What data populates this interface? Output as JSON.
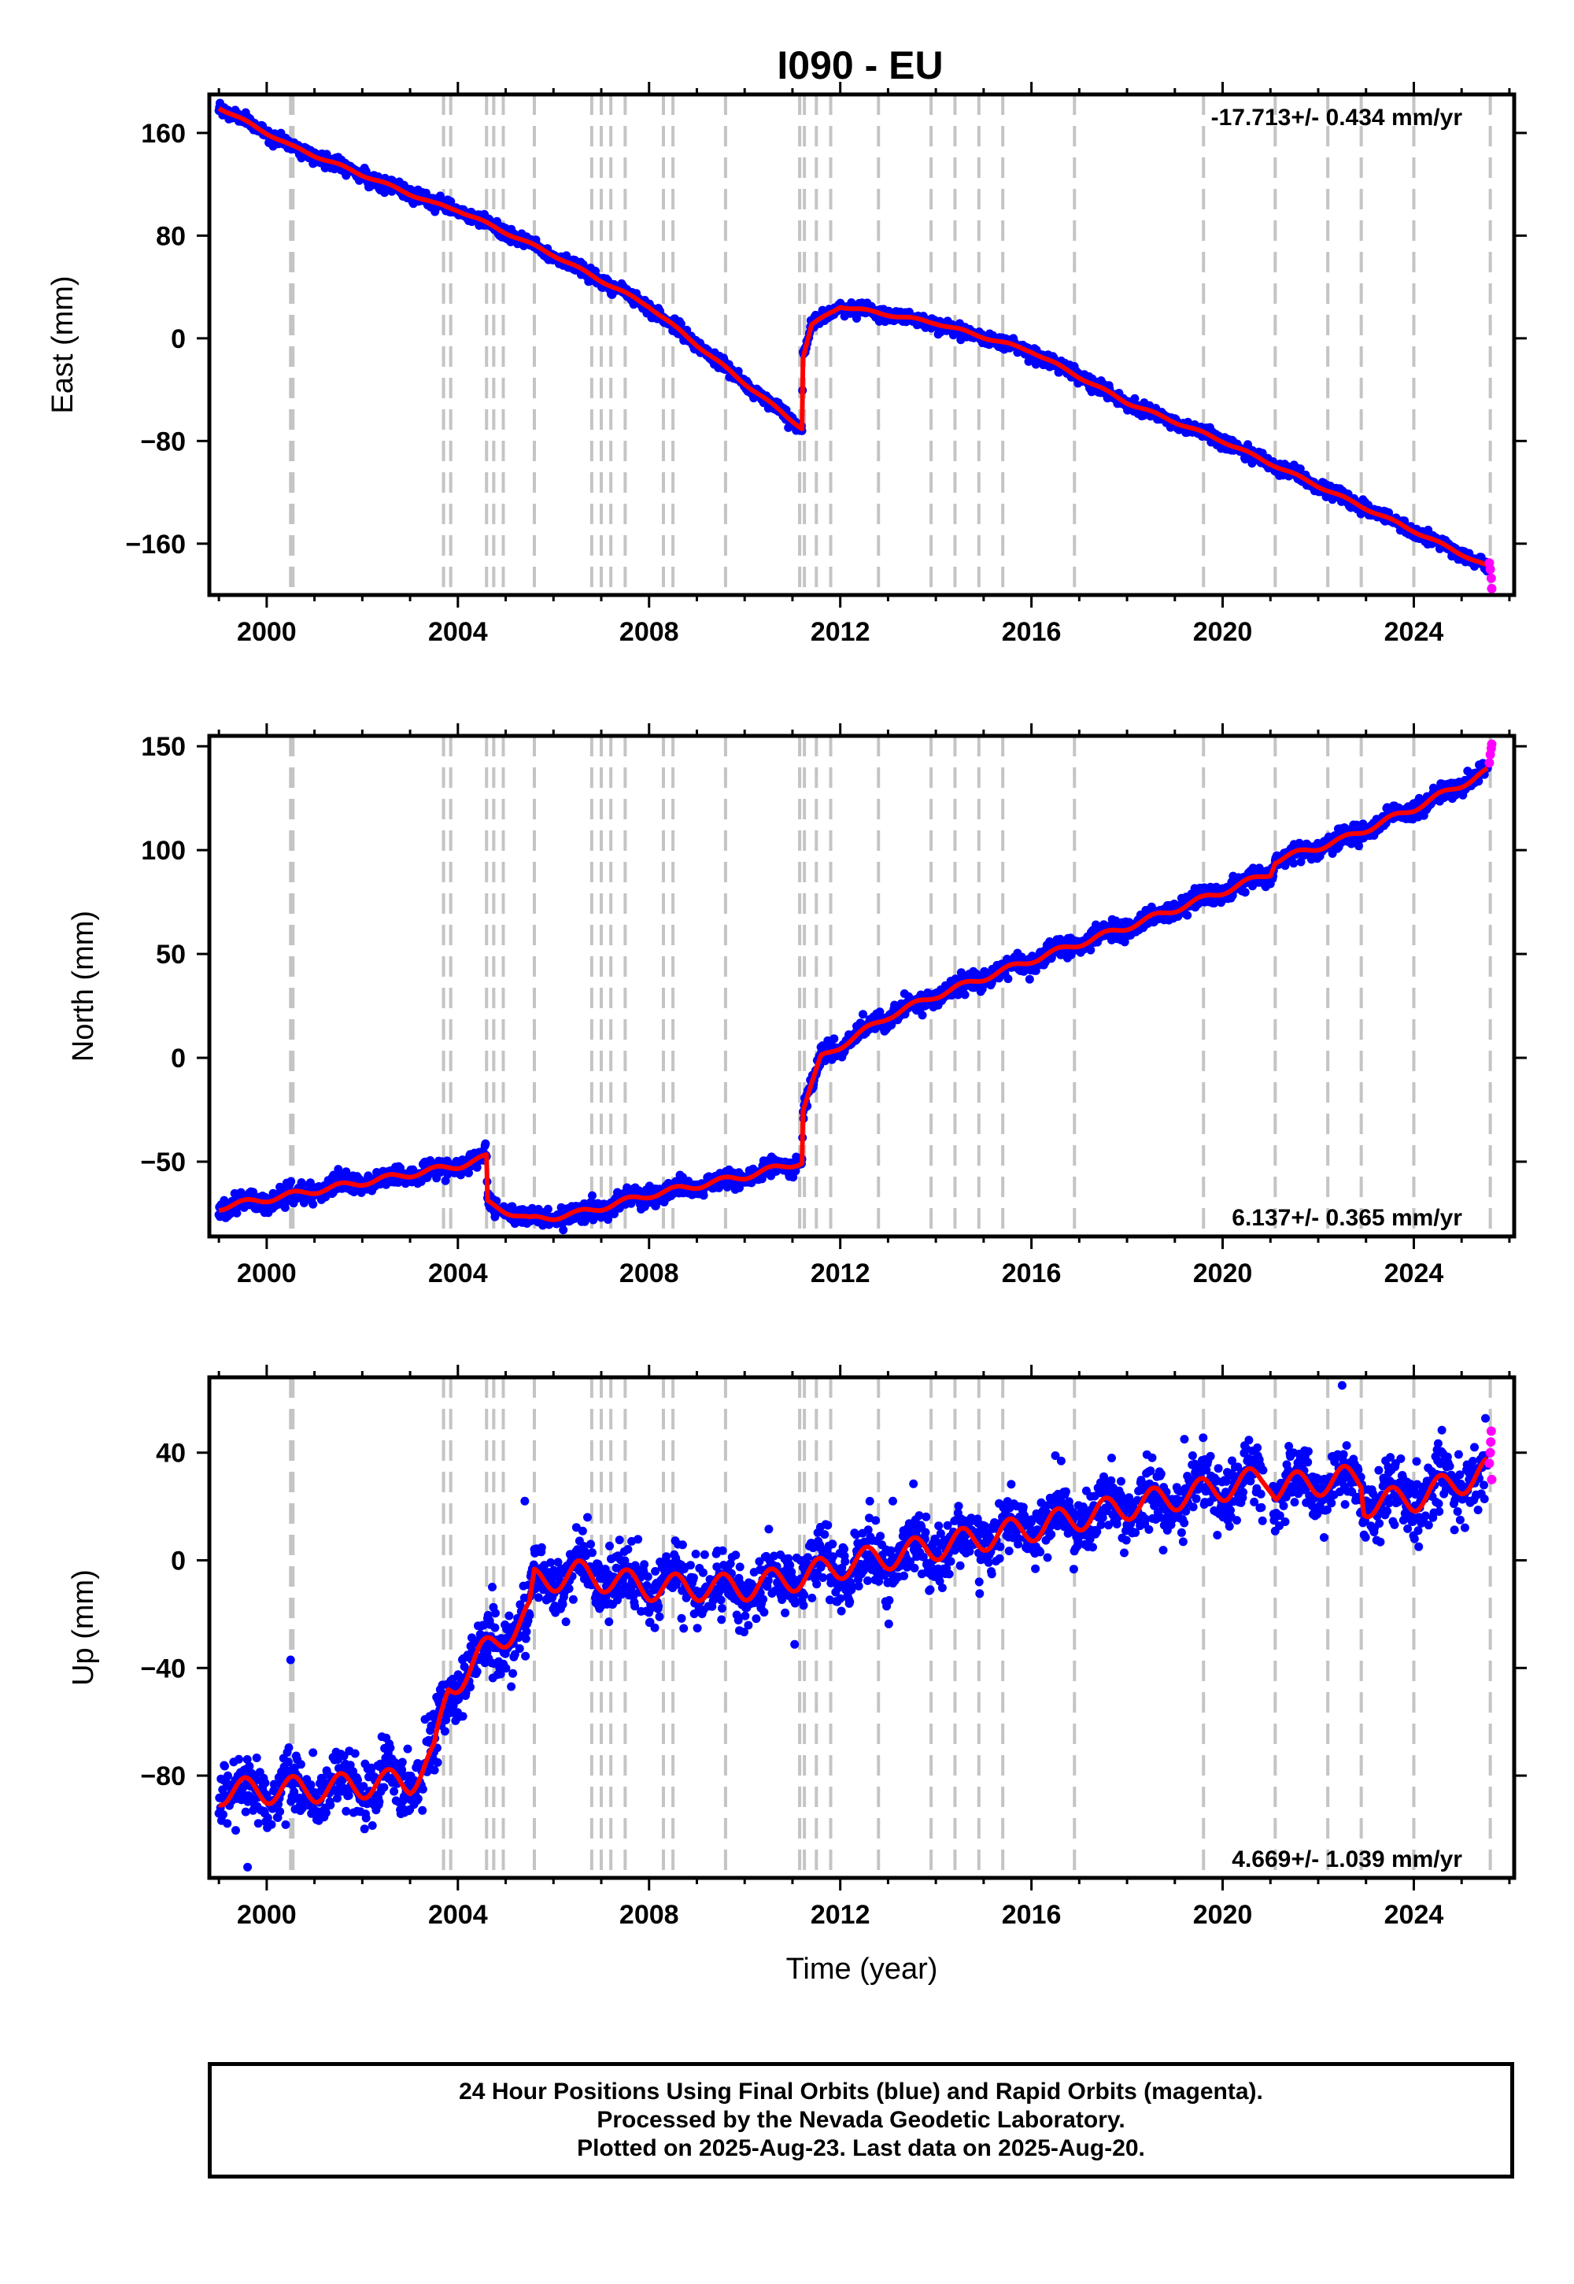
{
  "title": "I090 - EU",
  "colors": {
    "final_orbits": "#0000ff",
    "rapid_orbits": "#ff00ff",
    "model": "#ff0000",
    "events": "#c4c4c4"
  },
  "chart_data": [
    {
      "type": "scatter",
      "component": "East",
      "ylabel": "East (mm)",
      "xlabel": "",
      "rate_label": "-17.713+/- 0.434 mm/yr",
      "xlim": [
        1998.8,
        2026.1
      ],
      "ylim": [
        -200,
        190
      ],
      "xticks": [
        2000,
        2004,
        2008,
        2012,
        2016,
        2020,
        2024
      ],
      "yticks": [
        160,
        80,
        0,
        -80,
        -160
      ],
      "ytick_labels": [
        "160",
        "80",
        "0",
        "−80",
        "−160"
      ],
      "grid": false,
      "scatter_noise_mm": 2.5,
      "seasonal_amplitude_mm": 1,
      "final_orbits_trend": [
        [
          1999.0,
          180
        ],
        [
          2000.5,
          150
        ],
        [
          2003.5,
          105
        ],
        [
          2004.0,
          100
        ],
        [
          2006.0,
          65
        ],
        [
          2008.0,
          25
        ],
        [
          2010.0,
          -35
        ],
        [
          2011.2,
          -70
        ],
        [
          2011.22,
          -15
        ],
        [
          2011.4,
          10
        ],
        [
          2012.0,
          25
        ],
        [
          2014.0,
          12
        ],
        [
          2016.0,
          -10
        ],
        [
          2018.0,
          -50
        ],
        [
          2020.0,
          -80
        ],
        [
          2022.0,
          -115
        ],
        [
          2024.0,
          -150
        ],
        [
          2025.55,
          -178
        ]
      ],
      "rapid_orbits": [
        [
          2025.58,
          -175
        ],
        [
          2025.6,
          -180
        ],
        [
          2025.62,
          -187
        ],
        [
          2025.63,
          -195
        ]
      ],
      "model_breaks": [
        2011.21
      ],
      "model_gap": [],
      "outliers": [],
      "event_lines": [
        2000.5,
        2000.55,
        2003.7,
        2003.85,
        2004.6,
        2004.75,
        2004.95,
        2005.6,
        2006.8,
        2007.0,
        2007.2,
        2007.5,
        2008.3,
        2008.5,
        2009.6,
        2011.15,
        2011.25,
        2011.5,
        2011.8,
        2012.8,
        2013.9,
        2014.4,
        2014.9,
        2015.4,
        2016.9,
        2019.6,
        2021.1,
        2022.2,
        2022.9,
        2024.0,
        2025.6
      ]
    },
    {
      "type": "scatter",
      "component": "North",
      "ylabel": "North (mm)",
      "xlabel": "",
      "rate_label": "6.137+/- 0.365 mm/yr",
      "xlim": [
        1998.8,
        2026.1
      ],
      "ylim": [
        -86,
        155
      ],
      "xticks": [
        2000,
        2004,
        2008,
        2012,
        2016,
        2020,
        2024
      ],
      "yticks": [
        150,
        100,
        50,
        0,
        -50
      ],
      "ytick_labels": [
        "150",
        "100",
        "50",
        "0",
        "−50"
      ],
      "grid": false,
      "scatter_noise_mm": 2.2,
      "seasonal_amplitude_mm": 1.5,
      "final_orbits_trend": [
        [
          1999.0,
          -72
        ],
        [
          2000.5,
          -66
        ],
        [
          2002.0,
          -60
        ],
        [
          2004.0,
          -52
        ],
        [
          2004.6,
          -48
        ],
        [
          2004.62,
          -70
        ],
        [
          2005.5,
          -78
        ],
        [
          2006.5,
          -75
        ],
        [
          2008.0,
          -66
        ],
        [
          2010.0,
          -57
        ],
        [
          2011.2,
          -50
        ],
        [
          2011.22,
          -25
        ],
        [
          2011.6,
          0
        ],
        [
          2013.0,
          20
        ],
        [
          2014.0,
          30
        ],
        [
          2016.0,
          47
        ],
        [
          2018.0,
          63
        ],
        [
          2020.0,
          80
        ],
        [
          2021.0,
          89
        ],
        [
          2021.1,
          95
        ],
        [
          2022.5,
          105
        ],
        [
          2024.0,
          120
        ],
        [
          2025.55,
          138
        ]
      ],
      "rapid_orbits": [
        [
          2025.58,
          142
        ],
        [
          2025.6,
          146
        ],
        [
          2025.62,
          149
        ],
        [
          2025.63,
          151
        ]
      ],
      "model_breaks": [
        2004.61,
        2011.21
      ],
      "model_gap": [],
      "outliers": [],
      "event_lines": [
        2000.5,
        2000.55,
        2003.7,
        2003.85,
        2004.6,
        2004.75,
        2004.95,
        2005.6,
        2006.8,
        2007.0,
        2007.2,
        2007.5,
        2008.3,
        2008.5,
        2009.6,
        2011.15,
        2011.25,
        2011.5,
        2011.8,
        2012.8,
        2013.9,
        2014.4,
        2014.9,
        2015.4,
        2016.9,
        2019.6,
        2021.1,
        2022.2,
        2022.9,
        2024.0,
        2025.6
      ]
    },
    {
      "type": "scatter",
      "component": "Up",
      "ylabel": "Up (mm)",
      "xlabel": "Time (year)",
      "rate_label": "4.669+/- 1.039 mm/yr",
      "xlim": [
        1998.8,
        2026.1
      ],
      "ylim": [
        -118,
        68
      ],
      "xticks": [
        2000,
        2004,
        2008,
        2012,
        2016,
        2020,
        2024
      ],
      "yticks": [
        40,
        0,
        -40,
        -80
      ],
      "ytick_labels": [
        "40",
        "0",
        "−40",
        "−80"
      ],
      "grid": false,
      "scatter_noise_mm": 6,
      "seasonal_amplitude_mm": 5,
      "final_orbits_trend": [
        [
          1999.0,
          -86
        ],
        [
          2001.0,
          -85
        ],
        [
          2003.0,
          -82
        ],
        [
          2003.5,
          -73
        ],
        [
          2003.8,
          -48
        ],
        [
          2004.5,
          -35
        ],
        [
          2005.5,
          -20
        ],
        [
          2005.6,
          -8
        ],
        [
          2006.5,
          -5
        ],
        [
          2008.0,
          -10
        ],
        [
          2010.0,
          -10
        ],
        [
          2011.2,
          -6
        ],
        [
          2012.0,
          -2
        ],
        [
          2014.0,
          5
        ],
        [
          2016.0,
          12
        ],
        [
          2018.0,
          20
        ],
        [
          2020.0,
          27
        ],
        [
          2020.8,
          30
        ],
        [
          2021.1,
          27
        ],
        [
          2022.5,
          30
        ],
        [
          2022.9,
          30
        ],
        [
          2022.95,
          21
        ],
        [
          2024.0,
          23
        ],
        [
          2025.55,
          33
        ]
      ],
      "rapid_orbits": [
        [
          2025.58,
          36
        ],
        [
          2025.6,
          40
        ],
        [
          2025.61,
          44
        ],
        [
          2025.62,
          48
        ],
        [
          2025.63,
          30
        ]
      ],
      "model_breaks": [
        2003.8,
        2005.6,
        2022.93
      ],
      "model_gap": [
        2020.8,
        2021.1
      ],
      "outliers": [
        [
          2000.5,
          -37
        ],
        [
          2022.5,
          65
        ],
        [
          2002.5,
          -66
        ],
        [
          2005.4,
          22
        ],
        [
          2013.1,
          22
        ],
        [
          2019.2,
          45
        ],
        [
          1999.6,
          -114
        ]
      ],
      "event_lines": [
        2000.5,
        2000.55,
        2003.7,
        2003.85,
        2004.6,
        2004.75,
        2004.95,
        2005.6,
        2006.8,
        2007.0,
        2007.2,
        2007.5,
        2008.3,
        2008.5,
        2009.6,
        2011.15,
        2011.25,
        2011.5,
        2011.8,
        2012.8,
        2013.9,
        2014.4,
        2014.9,
        2015.4,
        2016.9,
        2019.6,
        2021.1,
        2022.2,
        2022.9,
        2024.0,
        2025.6
      ]
    }
  ],
  "footer": {
    "line1": "24 Hour Positions Using Final Orbits (blue) and Rapid Orbits (magenta).",
    "line2": "Processed by the Nevada Geodetic Laboratory.",
    "line3": "Plotted on 2025-Aug-23. Last data on 2025-Aug-20."
  }
}
